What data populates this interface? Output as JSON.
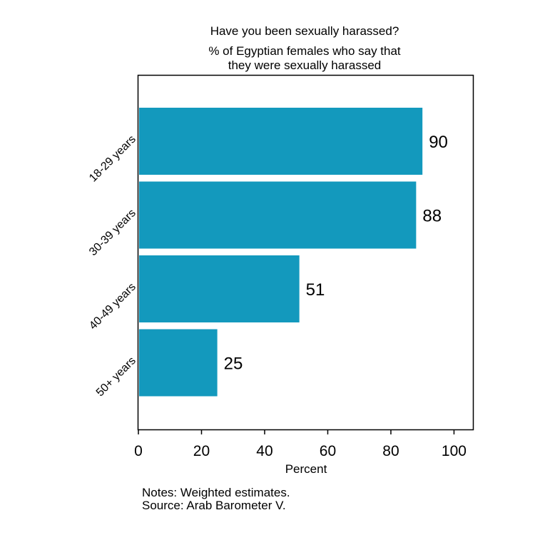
{
  "chart_data": {
    "type": "bar",
    "orientation": "horizontal",
    "title": "Have you been sexually harassed?",
    "subtitle_lines": [
      "% of Egyptian females who say that",
      "they were sexually harassed"
    ],
    "xlabel": "Percent",
    "ylabel": "",
    "categories": [
      "18-29 years",
      "30-39 years",
      "40-49 years",
      "50+ years"
    ],
    "values": [
      90,
      88,
      51,
      25
    ],
    "data_labels": [
      "90",
      "88",
      "51",
      "25"
    ],
    "xlim": [
      0,
      106
    ],
    "xticks": [
      0,
      20,
      40,
      60,
      80,
      100
    ],
    "xtick_labels": [
      "0",
      "20",
      "40",
      "60",
      "80",
      "100"
    ],
    "grid": false,
    "legend": "none",
    "colors": {
      "bar": "#1399BD",
      "frame": "#000000",
      "text": "#000000"
    }
  },
  "notes": {
    "line1": "Notes: Weighted estimates.",
    "line2": "Source: Arab Barometer V."
  }
}
